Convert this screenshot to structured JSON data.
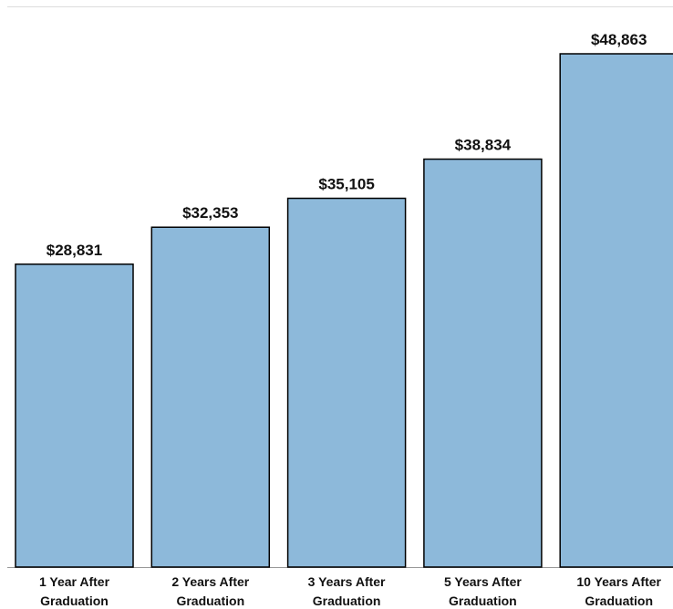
{
  "chart_data": {
    "type": "bar",
    "categories": [
      "1 Year After Graduation",
      "2 Years After Graduation",
      "3 Years After Graduation",
      "5 Years After Graduation",
      "10 Years After Graduation"
    ],
    "values": [
      28831,
      32353,
      35105,
      38834,
      48863
    ],
    "value_labels": [
      "$28,831",
      "$32,353",
      "$35,105",
      "$38,834",
      "$48,863"
    ],
    "color": "#8db9da"
  }
}
